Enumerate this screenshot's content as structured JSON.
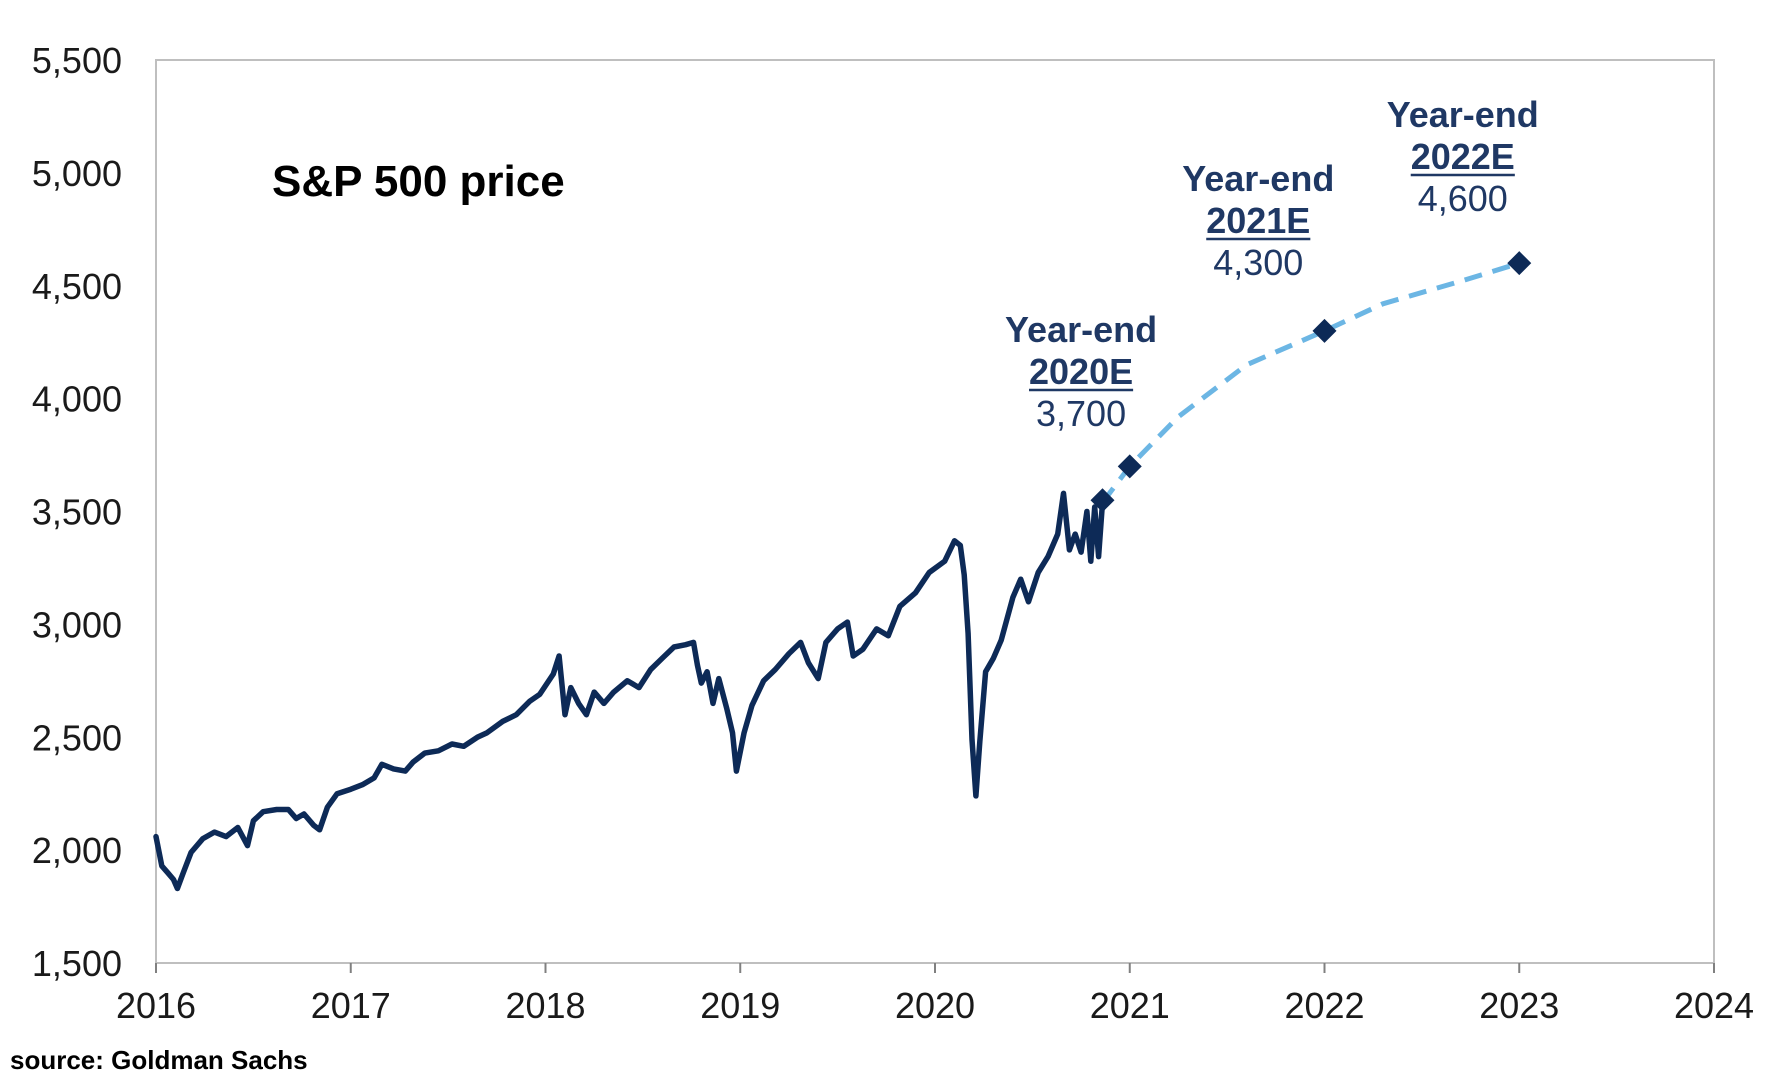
{
  "chart_data": {
    "type": "line",
    "title": "S&P 500 price",
    "xlabel": "",
    "ylabel": "",
    "xlim": [
      2016,
      2024
    ],
    "ylim": [
      1500,
      5500
    ],
    "x_ticks": [
      "2016",
      "2017",
      "2018",
      "2019",
      "2020",
      "2021",
      "2022",
      "2023",
      "2024"
    ],
    "y_ticks": [
      "1,500",
      "2,000",
      "2,500",
      "3,000",
      "3,500",
      "4,000",
      "4,500",
      "5,000",
      "5,500"
    ],
    "grid": false,
    "series": [
      {
        "name": "",
        "style": "solid",
        "color": "#0d2a57",
        "points": [
          [
            2016.0,
            2060
          ],
          [
            2016.03,
            1930
          ],
          [
            2016.06,
            1900
          ],
          [
            2016.09,
            1870
          ],
          [
            2016.11,
            1830
          ],
          [
            2016.14,
            1900
          ],
          [
            2016.18,
            1990
          ],
          [
            2016.24,
            2050
          ],
          [
            2016.3,
            2080
          ],
          [
            2016.36,
            2060
          ],
          [
            2016.42,
            2100
          ],
          [
            2016.47,
            2020
          ],
          [
            2016.5,
            2130
          ],
          [
            2016.55,
            2170
          ],
          [
            2016.62,
            2180
          ],
          [
            2016.68,
            2180
          ],
          [
            2016.72,
            2140
          ],
          [
            2016.76,
            2160
          ],
          [
            2016.81,
            2110
          ],
          [
            2016.84,
            2090
          ],
          [
            2016.88,
            2190
          ],
          [
            2016.93,
            2250
          ],
          [
            2017.0,
            2270
          ],
          [
            2017.06,
            2290
          ],
          [
            2017.12,
            2320
          ],
          [
            2017.16,
            2380
          ],
          [
            2017.22,
            2360
          ],
          [
            2017.28,
            2350
          ],
          [
            2017.32,
            2390
          ],
          [
            2017.38,
            2430
          ],
          [
            2017.45,
            2440
          ],
          [
            2017.52,
            2470
          ],
          [
            2017.58,
            2460
          ],
          [
            2017.65,
            2500
          ],
          [
            2017.7,
            2520
          ],
          [
            2017.78,
            2570
          ],
          [
            2017.85,
            2600
          ],
          [
            2017.92,
            2660
          ],
          [
            2017.97,
            2690
          ],
          [
            2018.04,
            2780
          ],
          [
            2018.07,
            2860
          ],
          [
            2018.1,
            2600
          ],
          [
            2018.13,
            2720
          ],
          [
            2018.17,
            2650
          ],
          [
            2018.21,
            2600
          ],
          [
            2018.25,
            2700
          ],
          [
            2018.3,
            2650
          ],
          [
            2018.35,
            2700
          ],
          [
            2018.42,
            2750
          ],
          [
            2018.48,
            2720
          ],
          [
            2018.54,
            2800
          ],
          [
            2018.6,
            2850
          ],
          [
            2018.66,
            2900
          ],
          [
            2018.72,
            2910
          ],
          [
            2018.76,
            2920
          ],
          [
            2018.78,
            2820
          ],
          [
            2018.8,
            2740
          ],
          [
            2018.83,
            2790
          ],
          [
            2018.86,
            2650
          ],
          [
            2018.89,
            2760
          ],
          [
            2018.93,
            2630
          ],
          [
            2018.96,
            2520
          ],
          [
            2018.98,
            2350
          ],
          [
            2019.02,
            2520
          ],
          [
            2019.06,
            2640
          ],
          [
            2019.12,
            2750
          ],
          [
            2019.18,
            2800
          ],
          [
            2019.25,
            2870
          ],
          [
            2019.31,
            2920
          ],
          [
            2019.35,
            2830
          ],
          [
            2019.4,
            2760
          ],
          [
            2019.44,
            2920
          ],
          [
            2019.5,
            2980
          ],
          [
            2019.55,
            3010
          ],
          [
            2019.58,
            2860
          ],
          [
            2019.63,
            2890
          ],
          [
            2019.7,
            2980
          ],
          [
            2019.76,
            2950
          ],
          [
            2019.82,
            3080
          ],
          [
            2019.9,
            3140
          ],
          [
            2019.97,
            3230
          ],
          [
            2020.05,
            3280
          ],
          [
            2020.1,
            3370
          ],
          [
            2020.13,
            3350
          ],
          [
            2020.15,
            3220
          ],
          [
            2020.17,
            2960
          ],
          [
            2020.19,
            2490
          ],
          [
            2020.21,
            2240
          ],
          [
            2020.23,
            2480
          ],
          [
            2020.26,
            2790
          ],
          [
            2020.3,
            2850
          ],
          [
            2020.34,
            2930
          ],
          [
            2020.4,
            3120
          ],
          [
            2020.44,
            3200
          ],
          [
            2020.48,
            3100
          ],
          [
            2020.53,
            3230
          ],
          [
            2020.58,
            3300
          ],
          [
            2020.63,
            3400
          ],
          [
            2020.66,
            3580
          ],
          [
            2020.69,
            3330
          ],
          [
            2020.72,
            3400
          ],
          [
            2020.75,
            3320
          ],
          [
            2020.78,
            3500
          ],
          [
            2020.8,
            3280
          ],
          [
            2020.82,
            3520
          ],
          [
            2020.84,
            3300
          ],
          [
            2020.86,
            3540
          ]
        ]
      },
      {
        "name": "",
        "style": "dashed",
        "color": "#6cb6e4",
        "points": [
          [
            2020.86,
            3540
          ],
          [
            2021.0,
            3700
          ],
          [
            2021.25,
            3920
          ],
          [
            2021.6,
            4150
          ],
          [
            2022.0,
            4300
          ],
          [
            2022.3,
            4420
          ],
          [
            2022.7,
            4520
          ],
          [
            2023.0,
            4600
          ]
        ]
      }
    ],
    "markers": [
      {
        "x": 2020.86,
        "y": 3550
      },
      {
        "x": 2021.0,
        "y": 3700
      },
      {
        "x": 2022.0,
        "y": 4300
      },
      {
        "x": 2023.0,
        "y": 4600
      }
    ],
    "annotations": [
      {
        "x": 2020.75,
        "line1": "Year-end",
        "line2": "2020E",
        "line3": "3,700"
      },
      {
        "x": 2021.66,
        "line1": "Year-end",
        "line2": "2021E",
        "line3": "4,300"
      },
      {
        "x": 2022.71,
        "line1": "Year-end",
        "line2": "2022E",
        "line3": "4,600"
      }
    ],
    "source": "source: Goldman Sachs"
  }
}
